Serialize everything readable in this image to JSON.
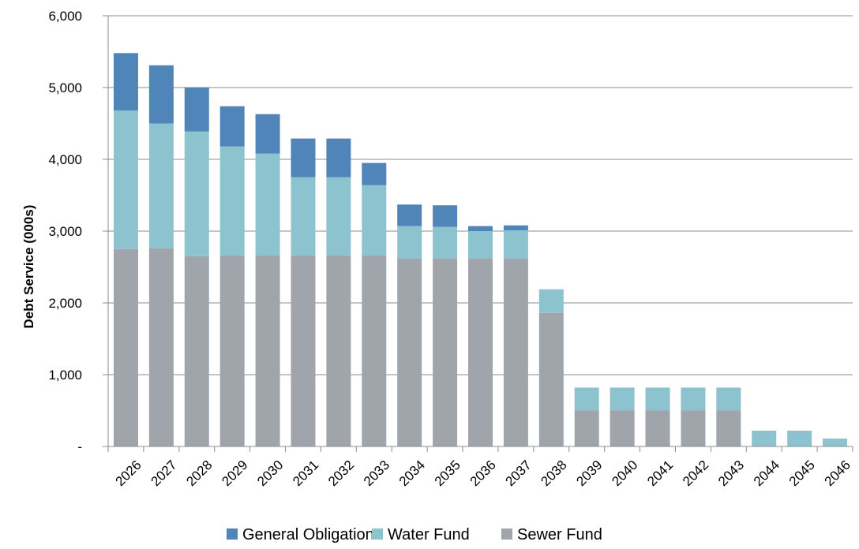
{
  "chart_data": {
    "type": "bar",
    "stacked": true,
    "title": "",
    "xlabel": "",
    "ylabel": "Debt Service (000s)",
    "ylim": [
      0,
      6000
    ],
    "yticks": [
      0,
      1000,
      2000,
      3000,
      4000,
      5000,
      6000
    ],
    "ytick_labels": [
      "-",
      "1,000",
      "2,000",
      "3,000",
      "4,000",
      "5,000",
      "6,000"
    ],
    "grid": true,
    "legend_position": "bottom",
    "categories": [
      "2026",
      "2027",
      "2028",
      "2029",
      "2030",
      "2031",
      "2032",
      "2033",
      "2034",
      "2035",
      "2036",
      "2037",
      "2038",
      "2039",
      "2040",
      "2041",
      "2042",
      "2043",
      "2044",
      "2045",
      "2046"
    ],
    "series": [
      {
        "name": "Sewer Fund",
        "color": "#a0a4ab",
        "values": [
          2750,
          2760,
          2650,
          2660,
          2660,
          2660,
          2660,
          2660,
          2620,
          2620,
          2620,
          2620,
          1860,
          500,
          500,
          500,
          500,
          500,
          0,
          0,
          0
        ]
      },
      {
        "name": "Water Fund",
        "color": "#8dc3cf",
        "values": [
          1930,
          1740,
          1740,
          1520,
          1420,
          1090,
          1090,
          980,
          450,
          440,
          380,
          390,
          330,
          320,
          320,
          320,
          320,
          320,
          220,
          220,
          110
        ]
      },
      {
        "name": "General Obligation",
        "color": "#4f85b8",
        "values": [
          800,
          810,
          610,
          560,
          550,
          540,
          540,
          310,
          300,
          300,
          70,
          70,
          0,
          0,
          0,
          0,
          0,
          0,
          0,
          0,
          0
        ]
      }
    ],
    "legend_order": [
      "General Obligation",
      "Water Fund",
      "Sewer Fund"
    ]
  }
}
